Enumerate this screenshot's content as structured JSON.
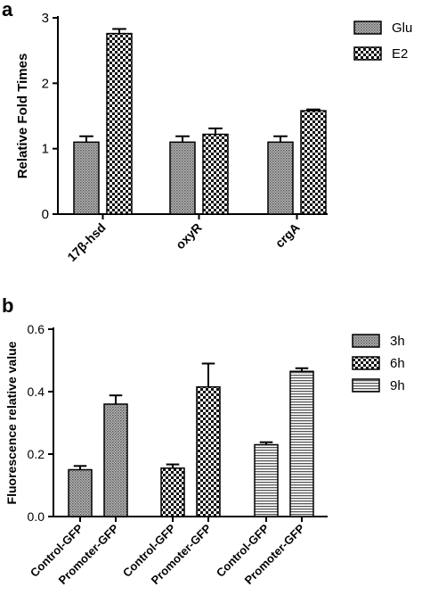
{
  "chart_data": [
    {
      "type": "bar",
      "panel": "a",
      "title": "",
      "xlabel": "",
      "ylabel": "Relative Fold Times",
      "ylim": [
        0,
        3
      ],
      "yticks": [
        "0",
        "1",
        "2",
        "3"
      ],
      "categories": [
        "17β-hsd",
        "oxyR",
        "crgA"
      ],
      "series": [
        {
          "name": "Glu",
          "pattern": "dots",
          "values": [
            1.1,
            1.1,
            1.1
          ],
          "errors": [
            0.09,
            0.09,
            0.09
          ]
        },
        {
          "name": "E2",
          "pattern": "checker",
          "values": [
            2.76,
            1.22,
            1.58
          ],
          "errors": [
            0.07,
            0.09,
            0.02
          ]
        }
      ],
      "legend_position": "top-right"
    },
    {
      "type": "bar",
      "panel": "b",
      "title": "",
      "xlabel": "",
      "ylabel": "Fluorescence relative value",
      "ylim": [
        0,
        0.6
      ],
      "yticks": [
        "0.0",
        "0.2",
        "0.4",
        "0.6"
      ],
      "groups": [
        "3h",
        "6h",
        "9h"
      ],
      "bar_labels": [
        "Control-GFP",
        "Promoter-GFP"
      ],
      "series": [
        {
          "name": "3h",
          "pattern": "dots",
          "values": [
            0.15,
            0.36
          ],
          "errors": [
            0.012,
            0.028
          ]
        },
        {
          "name": "6h",
          "pattern": "checker",
          "values": [
            0.155,
            0.415
          ],
          "errors": [
            0.012,
            0.075
          ]
        },
        {
          "name": "9h",
          "pattern": "stripes",
          "values": [
            0.23,
            0.465
          ],
          "errors": [
            0.008,
            0.01
          ]
        }
      ],
      "legend_position": "top-right"
    }
  ]
}
